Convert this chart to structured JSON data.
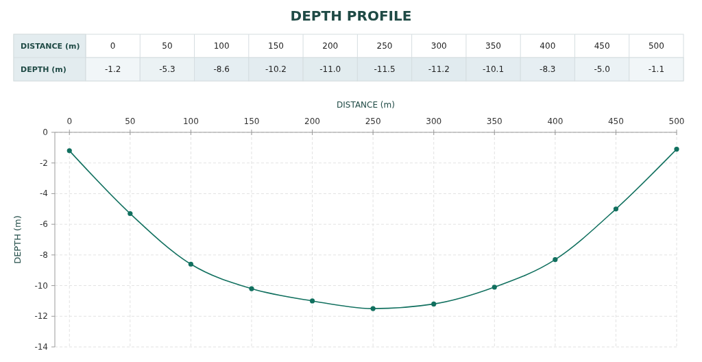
{
  "chart_data": [
    {
      "type": "heatmap",
      "title": "DEPTH PROFILE",
      "xlabel": "DISTANCE (m)",
      "categories": [
        "0",
        "50",
        "100",
        "150",
        "200",
        "250",
        "300",
        "350",
        "400",
        "450",
        "500"
      ],
      "y_categories": [
        "DEPTH (m)"
      ],
      "cells": [
        [
          -1.2,
          -5.3,
          -8.6,
          -10.2,
          -11.0,
          -11.5,
          -11.2,
          -10.1,
          -8.3,
          -5.0,
          -1.1
        ]
      ],
      "cell_labels": [
        [
          "-1.2",
          "-5.3",
          "-8.6",
          "-10.2",
          "-11.0",
          "-11.5",
          "-11.2",
          "-10.1",
          "-8.3",
          "-5.0",
          "-1.1"
        ]
      ]
    },
    {
      "type": "line",
      "xlabel": "DISTANCE (m)",
      "ylabel": "DEPTH (m)",
      "x": [
        0,
        50,
        100,
        150,
        200,
        250,
        300,
        350,
        400,
        450,
        500
      ],
      "series": [
        {
          "color": "#11705f",
          "values": [
            -1.2,
            -5.3,
            -8.6,
            -10.2,
            -11.0,
            -11.5,
            -11.2,
            -10.1,
            -8.3,
            -5.0,
            -1.1
          ]
        }
      ],
      "xlim": [
        -12,
        500
      ],
      "xticks": [
        0,
        50,
        100,
        150,
        200,
        250,
        300,
        350,
        400,
        450,
        500
      ],
      "ylim": [
        -14,
        0
      ],
      "yticks": [
        -14,
        -12,
        -10,
        -8,
        -6,
        -4,
        -2,
        0
      ],
      "grid": true,
      "marker": "circle",
      "line_style": "solid"
    }
  ]
}
